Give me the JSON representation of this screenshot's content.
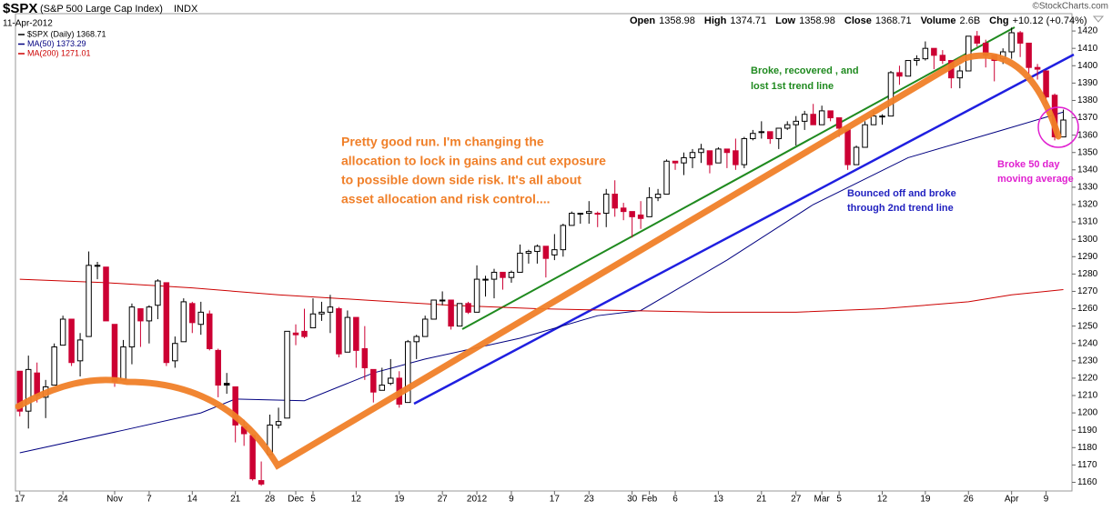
{
  "chart_data": {
    "type": "candlestick",
    "title": "$SPX",
    "subtitle": "(S&P 500 Large Cap Index)",
    "exchange": "INDX",
    "date": "11-Apr-2012",
    "quote": [
      {
        "label": "Open",
        "value": "1358.98"
      },
      {
        "label": "High",
        "value": "1374.71"
      },
      {
        "label": "Low",
        "value": "1358.98"
      },
      {
        "label": "Close",
        "value": "1368.71"
      },
      {
        "label": "Volume",
        "value": "2.6B"
      },
      {
        "label": "Chg",
        "value": "+10.12 (+0.74%)"
      }
    ],
    "copyright": "©StockCharts.com",
    "up_color": "#000000",
    "down_color": "#cc0033",
    "grid": false,
    "series": [
      {
        "name": "$SPX (Daily) 1368.71",
        "open": [
          1224,
          1201,
          1223,
          1209,
          1216,
          1239,
          1254,
          1230,
          1244,
          1285,
          1284,
          1251,
          1219,
          1238,
          1260,
          1253,
          1262,
          1275,
          1230,
          1241,
          1263,
          1251,
          1257,
          1236,
          1217,
          1215,
          1192,
          1187,
          1161,
          1176,
          1193,
          1197,
          1246,
          1247,
          1249,
          1257,
          1258,
          1260,
          1235,
          1255,
          1237,
          1225,
          1213,
          1217,
          1220,
          1206,
          1241,
          1244,
          1254,
          1265,
          1265,
          1250,
          1263,
          1258,
          1277,
          1277,
          1281,
          1278,
          1281,
          1292,
          1293,
          1296,
          1291,
          1294,
          1308,
          1315,
          1315,
          1315,
          1315,
          1326,
          1318,
          1316,
          1314,
          1313,
          1324,
          1326,
          1345,
          1344,
          1347,
          1350,
          1351,
          1344,
          1352,
          1351,
          1343,
          1358,
          1362,
          1362,
          1358,
          1364,
          1366,
          1368,
          1372,
          1366,
          1374,
          1370,
          1363,
          1343,
          1353,
          1366,
          1371,
          1371,
          1396,
          1394,
          1403,
          1404,
          1410,
          1406,
          1403,
          1393,
          1397,
          1417,
          1413,
          1406,
          1404,
          1408,
          1419,
          1413,
          1399,
          1397,
          1383,
          1358.98
        ],
        "high": [
          1224,
          1233,
          1229,
          1219,
          1240,
          1256,
          1254,
          1246,
          1293,
          1287,
          1284,
          1251,
          1242,
          1263,
          1260,
          1262,
          1277,
          1275,
          1244,
          1266,
          1264,
          1264,
          1259,
          1237,
          1223,
          1215,
          1196,
          1188,
          1172,
          1199,
          1203,
          1247,
          1251,
          1260,
          1266,
          1264,
          1268,
          1261,
          1259,
          1255,
          1250,
          1225,
          1226,
          1231,
          1224,
          1242,
          1245,
          1256,
          1265,
          1270,
          1265,
          1263,
          1264,
          1285,
          1279,
          1283,
          1281,
          1282,
          1297,
          1294,
          1297,
          1296,
          1303,
          1309,
          1316,
          1315,
          1322,
          1316,
          1329,
          1334,
          1321,
          1316,
          1322,
          1330,
          1329,
          1346,
          1345,
          1350,
          1352,
          1355,
          1351,
          1353,
          1352,
          1358,
          1359,
          1363,
          1368,
          1362,
          1364,
          1368,
          1371,
          1374,
          1378,
          1377,
          1374,
          1370,
          1363,
          1354,
          1368,
          1374,
          1372,
          1397,
          1400,
          1403,
          1406,
          1414,
          1410,
          1409,
          1403,
          1400,
          1417,
          1420,
          1415,
          1406,
          1410,
          1422,
          1420,
          1413,
          1401,
          1397,
          1384,
          1374.71
        ],
        "low": [
          1198,
          1191,
          1206,
          1197,
          1216,
          1239,
          1227,
          1221,
          1244,
          1277,
          1253,
          1215,
          1219,
          1228,
          1238,
          1240,
          1254,
          1227,
          1226,
          1241,
          1246,
          1245,
          1236,
          1209,
          1211,
          1183,
          1181,
          1161,
          1158,
          1176,
          1191,
          1197,
          1239,
          1243,
          1249,
          1253,
          1246,
          1232,
          1235,
          1226,
          1219,
          1206,
          1213,
          1216,
          1203,
          1206,
          1231,
          1244,
          1254,
          1262,
          1248,
          1250,
          1257,
          1258,
          1267,
          1266,
          1271,
          1275,
          1281,
          1286,
          1286,
          1278,
          1288,
          1290,
          1308,
          1309,
          1309,
          1307,
          1307,
          1313,
          1311,
          1301,
          1306,
          1313,
          1322,
          1326,
          1340,
          1337,
          1341,
          1344,
          1338,
          1344,
          1341,
          1340,
          1341,
          1357,
          1358,
          1355,
          1352,
          1363,
          1354,
          1363,
          1366,
          1366,
          1368,
          1359,
          1340,
          1343,
          1353,
          1366,
          1366,
          1371,
          1389,
          1394,
          1400,
          1403,
          1398,
          1401,
          1387,
          1387,
          1397,
          1411,
          1399,
          1391,
          1401,
          1404,
          1405,
          1395,
          1392,
          1378,
          1357,
          1358.98
        ],
        "close": [
          1201,
          1225,
          1210,
          1215,
          1238,
          1254,
          1229,
          1242,
          1285,
          1285,
          1253,
          1218,
          1238,
          1261,
          1253,
          1261,
          1276,
          1229,
          1240,
          1264,
          1252,
          1258,
          1237,
          1216,
          1216,
          1193,
          1188,
          1162,
          1159,
          1193,
          1195,
          1247,
          1245,
          1244,
          1257,
          1258,
          1261,
          1234,
          1255,
          1236,
          1226,
          1212,
          1216,
          1220,
          1205,
          1241,
          1244,
          1254,
          1265,
          1265,
          1250,
          1263,
          1258,
          1277,
          1277,
          1281,
          1278,
          1281,
          1292,
          1293,
          1296,
          1289,
          1294,
          1308,
          1315,
          1315,
          1316,
          1315,
          1326,
          1318,
          1316,
          1313,
          1312,
          1324,
          1326,
          1345,
          1344,
          1347,
          1350,
          1352,
          1343,
          1352,
          1350,
          1343,
          1358,
          1361,
          1362,
          1358,
          1364,
          1366,
          1368,
          1372,
          1366,
          1374,
          1370,
          1364,
          1343,
          1353,
          1366,
          1371,
          1371,
          1396,
          1394,
          1403,
          1404,
          1410,
          1406,
          1403,
          1393,
          1397,
          1417,
          1413,
          1406,
          1403,
          1408,
          1419,
          1413,
          1399,
          1398,
          1382,
          1359,
          1368.71
        ]
      }
    ],
    "overlays": [
      {
        "name": "MA(50) 1373.29",
        "color": "#000080",
        "x": [
          0,
          12,
          21,
          25,
          33,
          41,
          47,
          58,
          67,
          72,
          82,
          92,
          103,
          114,
          121
        ],
        "values": [
          1177,
          1190,
          1200,
          1208,
          1207,
          1223,
          1231,
          1243,
          1256,
          1259,
          1288,
          1320,
          1347,
          1363,
          1373.29
        ]
      },
      {
        "name": "MA(200) 1271.01",
        "color": "#cc0000",
        "x": [
          0,
          10,
          20,
          30,
          40,
          50,
          60,
          70,
          80,
          90,
          100,
          110,
          115,
          121
        ],
        "values": [
          1277,
          1275,
          1272,
          1268,
          1265,
          1262,
          1260,
          1259,
          1258,
          1258,
          1260,
          1264,
          1268,
          1271.01
        ]
      }
    ],
    "annotations": [
      {
        "color": "#f07f28",
        "lines": [
          "Pretty good run.  I'm  changing the",
          "allocation to lock in gains and cut exposure",
          "to possible down side risk. It's all about",
          "asset allocation and risk control...."
        ]
      },
      {
        "color": "#1f8a1f",
        "lines": [
          "Broke, recovered , and",
          "lost 1st trend line"
        ]
      },
      {
        "color": "#1f1fbf",
        "lines": [
          "Bounced off and broke",
          "through 2nd trend line"
        ]
      },
      {
        "color": "#e020d0",
        "lines": [
          "Broke 50 day",
          "moving  average"
        ]
      }
    ],
    "xlim": [
      -0.5,
      122
    ],
    "ylim": [
      1155,
      1430
    ],
    "yticks": [
      1160,
      1170,
      1180,
      1190,
      1200,
      1210,
      1220,
      1230,
      1240,
      1250,
      1260,
      1270,
      1280,
      1290,
      1300,
      1310,
      1320,
      1330,
      1340,
      1350,
      1360,
      1370,
      1380,
      1390,
      1400,
      1410,
      1420
    ],
    "xticks": [
      {
        "value": 0,
        "label": "17"
      },
      {
        "value": 5,
        "label": "24"
      },
      {
        "value": 11,
        "label": "Nov"
      },
      {
        "value": 15,
        "label": "7"
      },
      {
        "value": 20,
        "label": "14"
      },
      {
        "value": 25,
        "label": "21"
      },
      {
        "value": 29,
        "label": "28"
      },
      {
        "value": 32,
        "label": "Dec"
      },
      {
        "value": 34,
        "label": "5"
      },
      {
        "value": 39,
        "label": "12"
      },
      {
        "value": 44,
        "label": "19"
      },
      {
        "value": 49,
        "label": "27"
      },
      {
        "value": 53,
        "label": "2012"
      },
      {
        "value": 57,
        "label": "9"
      },
      {
        "value": 62,
        "label": "17"
      },
      {
        "value": 66,
        "label": "23"
      },
      {
        "value": 71,
        "label": "30"
      },
      {
        "value": 73,
        "label": "Feb"
      },
      {
        "value": 76,
        "label": "6"
      },
      {
        "value": 81,
        "label": "13"
      },
      {
        "value": 86,
        "label": "21"
      },
      {
        "value": 90,
        "label": "27"
      },
      {
        "value": 93,
        "label": "Mar"
      },
      {
        "value": 95,
        "label": "5"
      },
      {
        "value": 100,
        "label": "12"
      },
      {
        "value": 105,
        "label": "19"
      },
      {
        "value": 110,
        "label": "26"
      },
      {
        "value": 115,
        "label": "Apr"
      },
      {
        "value": 119,
        "label": "9"
      }
    ]
  }
}
